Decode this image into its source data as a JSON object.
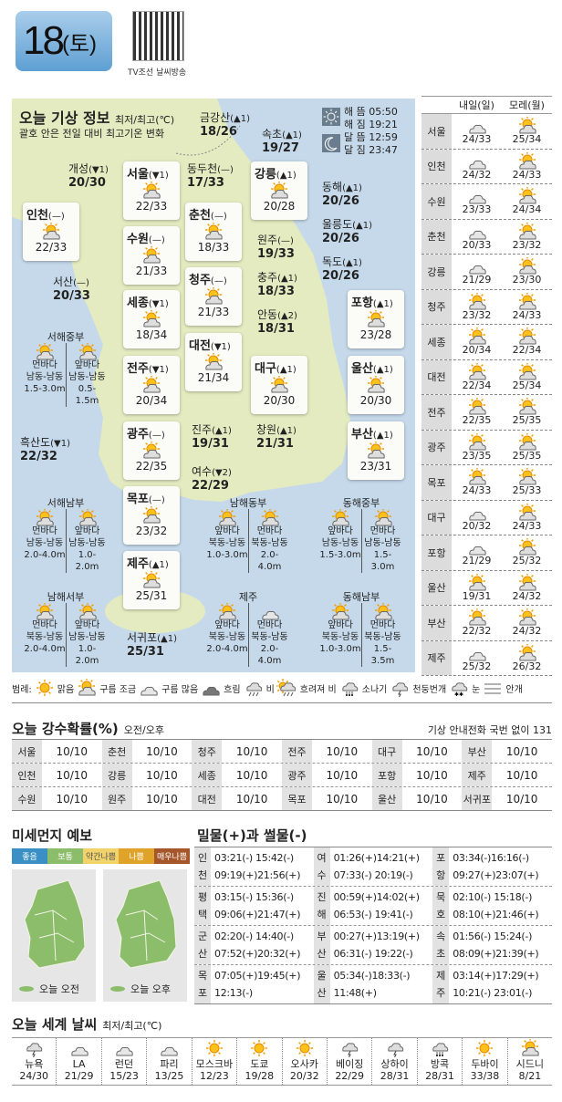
{
  "header": {
    "day": "18",
    "weekday": "(토)",
    "qr_caption": "TV조선 날씨방송"
  },
  "map": {
    "title": "오늘 기상 정보",
    "unit": "최저/최고(℃)",
    "note": "괄호 안은 전일 대비 최고기온 변화",
    "sun_moon": [
      {
        "label": "해 뜸",
        "time": "05:50"
      },
      {
        "label": "해 짐",
        "time": "19:21"
      },
      {
        "label": "달 뜸",
        "time": "12:59"
      },
      {
        "label": "달 짐",
        "time": "23:47"
      }
    ],
    "cards": [
      {
        "name": "인천",
        "change": "(—)",
        "temp": "22/33",
        "icon": "partly-cloudy"
      },
      {
        "name": "서울",
        "change": "(▼1)",
        "temp": "22/33",
        "icon": "partly-cloudy"
      },
      {
        "name": "수원",
        "change": "(—)",
        "temp": "21/33",
        "icon": "partly-cloudy"
      },
      {
        "name": "세종",
        "change": "(▼1)",
        "temp": "18/34",
        "icon": "partly-cloudy"
      },
      {
        "name": "전주",
        "change": "(▼1)",
        "temp": "20/34",
        "icon": "partly-cloudy"
      },
      {
        "name": "광주",
        "change": "(—)",
        "temp": "22/35",
        "icon": "partly-cloudy"
      },
      {
        "name": "목포",
        "change": "(—)",
        "temp": "23/32",
        "icon": "partly-cloudy"
      },
      {
        "name": "제주",
        "change": "(▲1)",
        "temp": "25/31",
        "icon": "partly-cloudy"
      },
      {
        "name": "춘천",
        "change": "(—)",
        "temp": "18/33",
        "icon": "partly-cloudy"
      },
      {
        "name": "청주",
        "change": "(—)",
        "temp": "21/33",
        "icon": "partly-cloudy"
      },
      {
        "name": "대전",
        "change": "(▼1)",
        "temp": "21/34",
        "icon": "partly-cloudy"
      },
      {
        "name": "강릉",
        "change": "(▲1)",
        "temp": "20/28",
        "icon": "partly-cloudy"
      },
      {
        "name": "대구",
        "change": "(▲1)",
        "temp": "20/30",
        "icon": "partly-cloudy"
      },
      {
        "name": "포항",
        "change": "(▲1)",
        "temp": "23/28",
        "icon": "partly-cloudy"
      },
      {
        "name": "울산",
        "change": "(▲1)",
        "temp": "20/30",
        "icon": "partly-cloudy"
      },
      {
        "name": "부산",
        "change": "(▲1)",
        "temp": "23/31",
        "icon": "partly-cloudy"
      }
    ],
    "plain": [
      {
        "name": "금강산",
        "change": "(▲1)",
        "temp": "18/26"
      },
      {
        "name": "속초",
        "change": "(▲1)",
        "temp": "19/27"
      },
      {
        "name": "개성",
        "change": "(▼1)",
        "temp": "20/30"
      },
      {
        "name": "동두천",
        "change": "(—)",
        "temp": "17/33"
      },
      {
        "name": "동해",
        "change": "(▲1)",
        "temp": "20/26"
      },
      {
        "name": "울릉도",
        "change": "(▲1)",
        "temp": "20/26"
      },
      {
        "name": "원주",
        "change": "(—)",
        "temp": "19/33"
      },
      {
        "name": "독도",
        "change": "(▲1)",
        "temp": "20/26"
      },
      {
        "name": "서산",
        "change": "(—)",
        "temp": "20/33"
      },
      {
        "name": "충주",
        "change": "(▲1)",
        "temp": "18/33"
      },
      {
        "name": "안동",
        "change": "(▲2)",
        "temp": "18/31"
      },
      {
        "name": "흑산도",
        "change": "(▼1)",
        "temp": "22/32"
      },
      {
        "name": "진주",
        "change": "(▲1)",
        "temp": "19/31"
      },
      {
        "name": "창원",
        "change": "(▲1)",
        "temp": "21/31"
      },
      {
        "name": "여수",
        "change": "(▼2)",
        "temp": "22/29"
      },
      {
        "name": "서귀포",
        "change": "(▲1)",
        "temp": "25/31"
      }
    ],
    "seas": [
      {
        "name": "서해중부",
        "cols": [
          {
            "icon": "partly-cloudy",
            "area": "먼바다",
            "dir": "남동-남동",
            "wave": "1.5-3.0m"
          },
          {
            "icon": "partly-cloudy",
            "area": "앞바다",
            "dir": "남동-남동",
            "wave": "0.5-1.5m"
          }
        ]
      },
      {
        "name": "서해남부",
        "cols": [
          {
            "icon": "partly-cloudy",
            "area": "먼바다",
            "dir": "남동-남동",
            "wave": "2.0-4.0m"
          },
          {
            "icon": "partly-cloudy",
            "area": "앞바다",
            "dir": "남동-남동",
            "wave": "1.0-2.0m"
          }
        ]
      },
      {
        "name": "남해서부",
        "cols": [
          {
            "icon": "partly-cloudy",
            "area": "먼바다",
            "dir": "북동-남동",
            "wave": "2.0-4.0m"
          },
          {
            "icon": "partly-cloudy",
            "area": "앞바다",
            "dir": "남동-남동",
            "wave": "1.0-2.0m"
          }
        ]
      },
      {
        "name": "남해동부",
        "cols": [
          {
            "icon": "partly-cloudy",
            "area": "앞바다",
            "dir": "북동-남동",
            "wave": "1.0-3.0m"
          },
          {
            "icon": "partly-cloudy",
            "area": "먼바다",
            "dir": "북동-남동",
            "wave": "2.0-4.0m"
          }
        ]
      },
      {
        "name": "동해중부",
        "cols": [
          {
            "icon": "partly-cloudy",
            "area": "앞바다",
            "dir": "남동-남동",
            "wave": "1.5-3.0m"
          },
          {
            "icon": "partly-cloudy",
            "area": "먼바다",
            "dir": "남동-남동",
            "wave": "1.5-3.0m"
          }
        ]
      },
      {
        "name": "제주",
        "cols": [
          {
            "icon": "partly-cloudy",
            "area": "앞바다",
            "dir": "북동-남동",
            "wave": "2.0-4.0m"
          },
          {
            "icon": "cloudy",
            "area": "먼바다",
            "dir": "북동-남동",
            "wave": "2.0-4.0m"
          }
        ]
      },
      {
        "name": "동해남부",
        "cols": [
          {
            "icon": "partly-cloudy",
            "area": "앞바다",
            "dir": "북동-남동",
            "wave": "1.0-3.0m"
          },
          {
            "icon": "partly-cloudy",
            "area": "먼바다",
            "dir": "북동-남동",
            "wave": "1.5-3.5m"
          }
        ]
      }
    ]
  },
  "forecast": {
    "headers": [
      "내일(일)",
      "모레(월)"
    ],
    "rows": [
      {
        "city": "서울",
        "d1": {
          "icon": "cloudy",
          "temp": "24/33"
        },
        "d2": {
          "icon": "partly-cloudy",
          "temp": "25/34"
        }
      },
      {
        "city": "인천",
        "d1": {
          "icon": "cloudy",
          "temp": "24/32"
        },
        "d2": {
          "icon": "partly-cloudy",
          "temp": "24/33"
        }
      },
      {
        "city": "수원",
        "d1": {
          "icon": "cloudy",
          "temp": "23/33"
        },
        "d2": {
          "icon": "partly-cloudy",
          "temp": "24/34"
        }
      },
      {
        "city": "춘천",
        "d1": {
          "icon": "cloudy",
          "temp": "20/33"
        },
        "d2": {
          "icon": "partly-cloudy",
          "temp": "23/32"
        }
      },
      {
        "city": "강릉",
        "d1": {
          "icon": "cloudy",
          "temp": "21/29"
        },
        "d2": {
          "icon": "partly-cloudy",
          "temp": "23/30"
        }
      },
      {
        "city": "청주",
        "d1": {
          "icon": "partly-cloudy",
          "temp": "23/32"
        },
        "d2": {
          "icon": "partly-cloudy",
          "temp": "24/33"
        }
      },
      {
        "city": "세종",
        "d1": {
          "icon": "partly-cloudy",
          "temp": "20/34"
        },
        "d2": {
          "icon": "partly-cloudy",
          "temp": "22/34"
        }
      },
      {
        "city": "대전",
        "d1": {
          "icon": "partly-cloudy",
          "temp": "22/34"
        },
        "d2": {
          "icon": "partly-cloudy",
          "temp": "25/34"
        }
      },
      {
        "city": "전주",
        "d1": {
          "icon": "partly-cloudy",
          "temp": "22/35"
        },
        "d2": {
          "icon": "partly-cloudy",
          "temp": "25/35"
        }
      },
      {
        "city": "광주",
        "d1": {
          "icon": "partly-cloudy",
          "temp": "23/35"
        },
        "d2": {
          "icon": "partly-cloudy",
          "temp": "25/35"
        }
      },
      {
        "city": "목포",
        "d1": {
          "icon": "partly-cloudy",
          "temp": "24/33"
        },
        "d2": {
          "icon": "partly-cloudy",
          "temp": "25/33"
        }
      },
      {
        "city": "대구",
        "d1": {
          "icon": "cloudy",
          "temp": "20/32"
        },
        "d2": {
          "icon": "partly-cloudy",
          "temp": "24/33"
        }
      },
      {
        "city": "포항",
        "d1": {
          "icon": "cloudy",
          "temp": "21/29"
        },
        "d2": {
          "icon": "partly-cloudy",
          "temp": "25/32"
        }
      },
      {
        "city": "울산",
        "d1": {
          "icon": "partly-cloudy",
          "temp": "19/31"
        },
        "d2": {
          "icon": "partly-cloudy",
          "temp": "24/32"
        }
      },
      {
        "city": "부산",
        "d1": {
          "icon": "partly-cloudy",
          "temp": "22/32"
        },
        "d2": {
          "icon": "partly-cloudy",
          "temp": "24/32"
        }
      },
      {
        "city": "제주",
        "d1": {
          "icon": "cloudy",
          "temp": "25/32"
        },
        "d2": {
          "icon": "partly-cloudy",
          "temp": "26/32"
        }
      }
    ]
  },
  "legend": {
    "prefix": "범례:",
    "items": [
      {
        "icon": "sunny",
        "label": "맑음"
      },
      {
        "icon": "partly-cloudy",
        "label": "구름 조금"
      },
      {
        "icon": "cloudy",
        "label": "구름 많음"
      },
      {
        "icon": "overcast",
        "label": "흐림"
      },
      {
        "icon": "rain",
        "label": "비"
      },
      {
        "icon": "sun-rain",
        "label": "흐려져 비"
      },
      {
        "icon": "shower",
        "label": "소나기"
      },
      {
        "icon": "thunder",
        "label": "천둥번개"
      },
      {
        "icon": "snow",
        "label": "눈"
      },
      {
        "icon": "fog",
        "label": "안개"
      }
    ]
  },
  "precip": {
    "title": "오늘 강수확률(%)",
    "sub": "오전/오후",
    "phone": "기상 안내전화 국번 없이 131",
    "rows": [
      [
        [
          "서울",
          "10/10"
        ],
        [
          "춘천",
          "10/10"
        ],
        [
          "청주",
          "10/10"
        ],
        [
          "전주",
          "10/10"
        ],
        [
          "대구",
          "10/10"
        ],
        [
          "부산",
          "10/10"
        ]
      ],
      [
        [
          "인천",
          "10/10"
        ],
        [
          "강릉",
          "10/10"
        ],
        [
          "세종",
          "10/10"
        ],
        [
          "광주",
          "10/10"
        ],
        [
          "포항",
          "10/10"
        ],
        [
          "제주",
          "10/10"
        ]
      ],
      [
        [
          "수원",
          "10/10"
        ],
        [
          "원주",
          "10/10"
        ],
        [
          "대전",
          "10/10"
        ],
        [
          "목포",
          "10/10"
        ],
        [
          "울산",
          "10/10"
        ],
        [
          "서귀포",
          "10/10"
        ]
      ]
    ]
  },
  "dust": {
    "title": "미세먼지 예보",
    "scale": [
      {
        "label": "좋음",
        "color": "#3a8fc4"
      },
      {
        "label": "보통",
        "color": "#8cbd6a"
      },
      {
        "label": "약간나쁨",
        "color": "#f2d36b"
      },
      {
        "label": "나쁨",
        "color": "#e0a32a"
      },
      {
        "label": "매우나쁨",
        "color": "#a5562a"
      }
    ],
    "maps": [
      {
        "label": "오늘 오전",
        "level": "보통"
      },
      {
        "label": "오늘 오후",
        "level": "보통"
      }
    ]
  },
  "tides": {
    "title": "밀물(+)과 썰물(-)",
    "rows": [
      [
        {
          "place": "인천",
          "lines": [
            "03:21(-) 15:42(-)",
            "09:19(+)21:56(+)"
          ]
        },
        {
          "place": "여수",
          "lines": [
            "01:26(+)14:21(+)",
            "07:33(-) 20:19(-)"
          ]
        },
        {
          "place": "포항",
          "lines": [
            "03:34(-)16:16(-)",
            "09:27(+)23:07(+)"
          ]
        }
      ],
      [
        {
          "place": "평택",
          "lines": [
            "03:15(-) 15:36(-)",
            "09:06(+)21:47(+)"
          ]
        },
        {
          "place": "진해",
          "lines": [
            "00:59(+)14:02(+)",
            "06:53(-) 19:41(-)"
          ]
        },
        {
          "place": "묵호",
          "lines": [
            "02:10(-) 15:18(-)",
            "08:10(+)21:46(+)"
          ]
        }
      ],
      [
        {
          "place": "군산",
          "lines": [
            "02:20(-) 14:40(-)",
            "07:52(+)20:32(+)"
          ]
        },
        {
          "place": "부산",
          "lines": [
            "00:27(+)13:19(+)",
            "06:31(-) 19:22(-)"
          ]
        },
        {
          "place": "속초",
          "lines": [
            "01:56(-) 15:24(-)",
            "08:09(+)21:39(+)"
          ]
        }
      ],
      [
        {
          "place": "목포",
          "lines": [
            "07:05(+)19:45(+)",
            "12:13(-)"
          ]
        },
        {
          "place": "울산",
          "lines": [
            "05:34(-)18:33(-)",
            "11:48(+)"
          ]
        },
        {
          "place": "제주",
          "lines": [
            "03:14(+)17:29(+)",
            "10:21(-) 23:01(-)"
          ]
        }
      ]
    ]
  },
  "world": {
    "title": "오늘 세계 날씨",
    "unit": "최저/최고(℃)",
    "cities": [
      {
        "name": "뉴욕",
        "temp": "24/30",
        "icon": "thunder"
      },
      {
        "name": "LA",
        "temp": "21/29",
        "icon": "cloudy"
      },
      {
        "name": "런던",
        "temp": "15/23",
        "icon": "cloudy"
      },
      {
        "name": "파리",
        "temp": "13/25",
        "icon": "cloudy"
      },
      {
        "name": "모스크바",
        "temp": "12/23",
        "icon": "sunny"
      },
      {
        "name": "도쿄",
        "temp": "19/28",
        "icon": "sunny"
      },
      {
        "name": "오사카",
        "temp": "20/32",
        "icon": "sunny"
      },
      {
        "name": "베이징",
        "temp": "22/29",
        "icon": "thunder"
      },
      {
        "name": "상하이",
        "temp": "28/31",
        "icon": "thunder"
      },
      {
        "name": "방콕",
        "temp": "28/31",
        "icon": "shower"
      },
      {
        "name": "두바이",
        "temp": "33/38",
        "icon": "sunny"
      },
      {
        "name": "시드니",
        "temp": "8/21",
        "icon": "partly-cloudy"
      }
    ]
  }
}
